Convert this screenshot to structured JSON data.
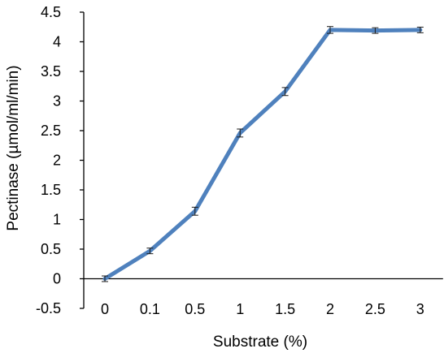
{
  "chart_data": {
    "type": "line",
    "title": "",
    "xlabel": "Substrate (%)",
    "ylabel": "Pectinase (µmol/ml/min)",
    "categories": [
      "0",
      "0.1",
      "0.5",
      "1",
      "1.5",
      "2",
      "2.5",
      "3"
    ],
    "series": [
      {
        "name": "",
        "values": [
          0,
          0.47,
          1.14,
          2.46,
          3.16,
          4.2,
          4.19,
          4.2
        ],
        "error": [
          0.02,
          0.02,
          0.04,
          0.04,
          0.04,
          0.03,
          0.02,
          0.02
        ],
        "color": "#4f81bd"
      }
    ],
    "ylim": [
      -0.5,
      4.5
    ],
    "yticks": [
      "-0.5",
      "0",
      "0.5",
      "1",
      "1.5",
      "2",
      "2.5",
      "3",
      "3.5",
      "4",
      "4.5"
    ],
    "grid": false,
    "legend": "none",
    "axis_color": "#000000"
  }
}
